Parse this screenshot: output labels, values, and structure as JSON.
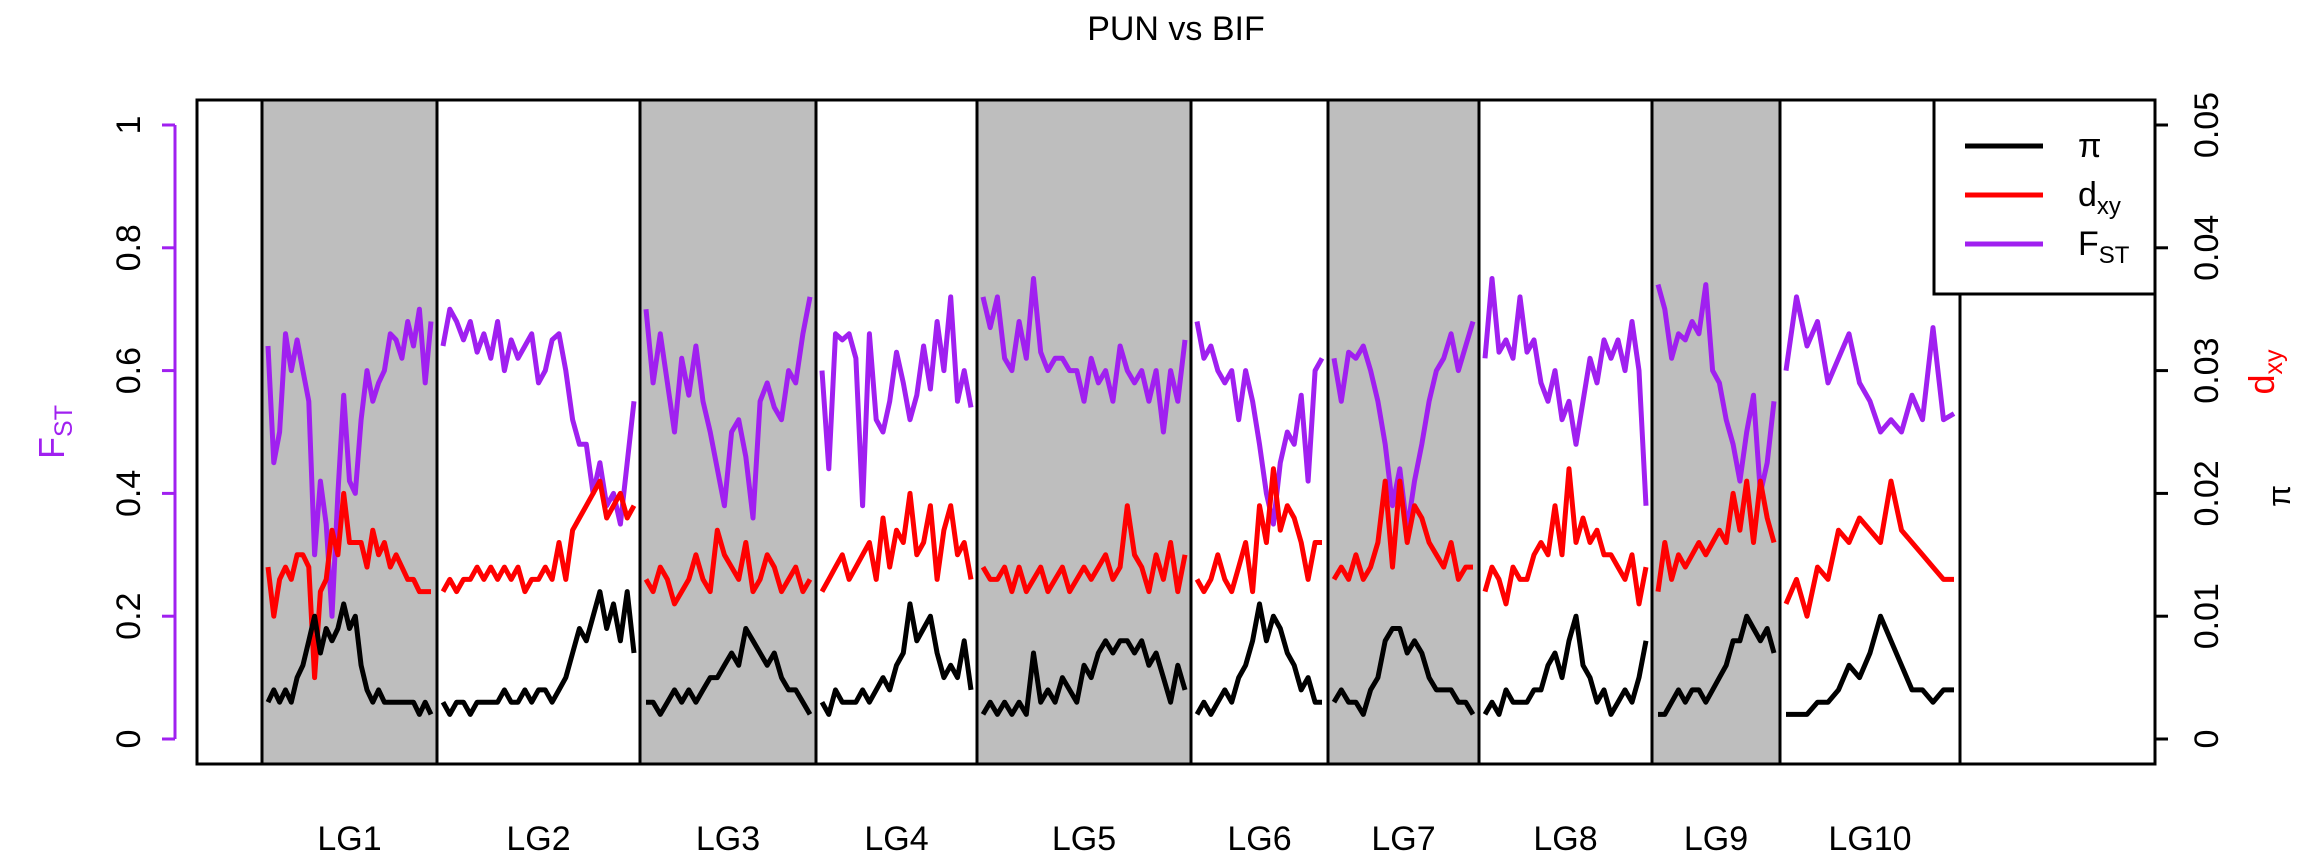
{
  "chart_data": {
    "type": "line",
    "title": "PUN vs BIF",
    "left_axis": {
      "label_main": "F",
      "label_sub": "ST",
      "color": "#A020F0",
      "ylim": [
        0,
        1
      ],
      "ticks": [
        0,
        0.2,
        0.4,
        0.6,
        0.8,
        1
      ],
      "tick_labels": [
        "0",
        "0.2",
        "0.4",
        "0.6",
        "0.8",
        "1"
      ]
    },
    "right_axis": {
      "ylim": [
        0,
        0.05
      ],
      "ticks": [
        0,
        0.01,
        0.02,
        0.03,
        0.04,
        0.05
      ],
      "tick_labels": [
        "0",
        "0.01",
        "0.02",
        "0.03",
        "0.04",
        "0.05"
      ],
      "label_dxy_main": "d",
      "label_dxy_sub": "xy",
      "label_dxy_color": "#FF0000",
      "label_pi": "π",
      "label_pi_color": "#000000"
    },
    "legend": {
      "position": "top-right",
      "entries": [
        {
          "main": "π",
          "sub": "",
          "color": "#000000"
        },
        {
          "main": "d",
          "sub": "xy",
          "color": "#FF0000"
        },
        {
          "main": "F",
          "sub": "ST",
          "color": "#A020F0"
        }
      ]
    },
    "linkage_groups": [
      {
        "name": "LG1",
        "shaded": true,
        "fst": [
          0.64,
          0.45,
          0.5,
          0.66,
          0.6,
          0.65,
          0.6,
          0.55,
          0.3,
          0.42,
          0.35,
          0.2,
          0.4,
          0.56,
          0.42,
          0.4,
          0.52,
          0.6,
          0.55,
          0.58,
          0.6,
          0.66,
          0.65,
          0.62,
          0.68,
          0.64,
          0.7,
          0.58,
          0.68
        ],
        "dxy": [
          0.014,
          0.01,
          0.013,
          0.014,
          0.013,
          0.015,
          0.015,
          0.014,
          0.005,
          0.012,
          0.013,
          0.017,
          0.015,
          0.02,
          0.016,
          0.016,
          0.016,
          0.014,
          0.017,
          0.015,
          0.016,
          0.014,
          0.015,
          0.014,
          0.013,
          0.013,
          0.012,
          0.012,
          0.012
        ],
        "pi": [
          0.003,
          0.004,
          0.003,
          0.004,
          0.003,
          0.005,
          0.006,
          0.008,
          0.01,
          0.007,
          0.009,
          0.008,
          0.009,
          0.011,
          0.009,
          0.01,
          0.006,
          0.004,
          0.003,
          0.004,
          0.003,
          0.003,
          0.003,
          0.003,
          0.003,
          0.003,
          0.002,
          0.003,
          0.002
        ]
      },
      {
        "name": "LG2",
        "shaded": false,
        "fst": [
          0.64,
          0.7,
          0.68,
          0.65,
          0.68,
          0.63,
          0.66,
          0.62,
          0.68,
          0.6,
          0.65,
          0.62,
          0.64,
          0.66,
          0.58,
          0.6,
          0.65,
          0.66,
          0.6,
          0.52,
          0.48,
          0.48,
          0.4,
          0.45,
          0.38,
          0.4,
          0.35,
          0.45,
          0.55
        ],
        "dxy": [
          0.012,
          0.013,
          0.012,
          0.013,
          0.013,
          0.014,
          0.013,
          0.014,
          0.013,
          0.014,
          0.013,
          0.014,
          0.012,
          0.013,
          0.013,
          0.014,
          0.013,
          0.016,
          0.013,
          0.017,
          0.018,
          0.019,
          0.02,
          0.021,
          0.018,
          0.019,
          0.02,
          0.018,
          0.019
        ],
        "pi": [
          0.003,
          0.002,
          0.003,
          0.003,
          0.002,
          0.003,
          0.003,
          0.003,
          0.003,
          0.004,
          0.003,
          0.003,
          0.004,
          0.003,
          0.004,
          0.004,
          0.003,
          0.004,
          0.005,
          0.007,
          0.009,
          0.008,
          0.01,
          0.012,
          0.009,
          0.011,
          0.008,
          0.012,
          0.007
        ]
      },
      {
        "name": "LG3",
        "shaded": true,
        "fst": [
          0.7,
          0.58,
          0.66,
          0.58,
          0.5,
          0.62,
          0.56,
          0.64,
          0.55,
          0.5,
          0.44,
          0.38,
          0.5,
          0.52,
          0.46,
          0.36,
          0.55,
          0.58,
          0.54,
          0.52,
          0.6,
          0.58,
          0.66,
          0.72
        ],
        "dxy": [
          0.013,
          0.012,
          0.014,
          0.013,
          0.011,
          0.012,
          0.013,
          0.015,
          0.013,
          0.012,
          0.017,
          0.015,
          0.014,
          0.013,
          0.016,
          0.012,
          0.013,
          0.015,
          0.014,
          0.012,
          0.013,
          0.014,
          0.012,
          0.013
        ],
        "pi": [
          0.003,
          0.003,
          0.002,
          0.003,
          0.004,
          0.003,
          0.004,
          0.003,
          0.004,
          0.005,
          0.005,
          0.006,
          0.007,
          0.006,
          0.009,
          0.008,
          0.007,
          0.006,
          0.007,
          0.005,
          0.004,
          0.004,
          0.003,
          0.002
        ]
      },
      {
        "name": "LG4",
        "shaded": false,
        "fst": [
          0.6,
          0.44,
          0.66,
          0.65,
          0.66,
          0.62,
          0.38,
          0.66,
          0.52,
          0.5,
          0.55,
          0.63,
          0.58,
          0.52,
          0.56,
          0.64,
          0.57,
          0.68,
          0.6,
          0.72,
          0.55,
          0.6,
          0.54
        ],
        "dxy": [
          0.012,
          0.013,
          0.014,
          0.015,
          0.013,
          0.014,
          0.015,
          0.016,
          0.013,
          0.018,
          0.014,
          0.017,
          0.016,
          0.02,
          0.015,
          0.016,
          0.019,
          0.013,
          0.017,
          0.019,
          0.015,
          0.016,
          0.013
        ],
        "pi": [
          0.003,
          0.002,
          0.004,
          0.003,
          0.003,
          0.003,
          0.004,
          0.003,
          0.004,
          0.005,
          0.004,
          0.006,
          0.007,
          0.011,
          0.008,
          0.009,
          0.01,
          0.007,
          0.005,
          0.006,
          0.005,
          0.008,
          0.004
        ]
      },
      {
        "name": "LG5",
        "shaded": true,
        "fst": [
          0.72,
          0.67,
          0.72,
          0.62,
          0.6,
          0.68,
          0.62,
          0.75,
          0.63,
          0.6,
          0.62,
          0.62,
          0.6,
          0.6,
          0.55,
          0.62,
          0.58,
          0.6,
          0.55,
          0.64,
          0.6,
          0.58,
          0.6,
          0.55,
          0.6,
          0.5,
          0.6,
          0.55,
          0.65
        ],
        "dxy": [
          0.014,
          0.013,
          0.013,
          0.014,
          0.012,
          0.014,
          0.012,
          0.013,
          0.014,
          0.012,
          0.013,
          0.014,
          0.012,
          0.013,
          0.014,
          0.013,
          0.014,
          0.015,
          0.013,
          0.014,
          0.019,
          0.015,
          0.014,
          0.012,
          0.015,
          0.013,
          0.016,
          0.012,
          0.015
        ],
        "pi": [
          0.002,
          0.003,
          0.002,
          0.003,
          0.002,
          0.003,
          0.002,
          0.007,
          0.003,
          0.004,
          0.003,
          0.005,
          0.004,
          0.003,
          0.006,
          0.005,
          0.007,
          0.008,
          0.007,
          0.008,
          0.008,
          0.007,
          0.008,
          0.006,
          0.007,
          0.005,
          0.003,
          0.006,
          0.004
        ]
      },
      {
        "name": "LG6",
        "shaded": false,
        "fst": [
          0.68,
          0.62,
          0.64,
          0.6,
          0.58,
          0.6,
          0.52,
          0.6,
          0.55,
          0.48,
          0.4,
          0.35,
          0.45,
          0.5,
          0.48,
          0.56,
          0.42,
          0.6,
          0.62
        ],
        "dxy": [
          0.013,
          0.012,
          0.013,
          0.015,
          0.013,
          0.012,
          0.014,
          0.016,
          0.012,
          0.019,
          0.016,
          0.022,
          0.017,
          0.019,
          0.018,
          0.016,
          0.013,
          0.016,
          0.016
        ],
        "pi": [
          0.002,
          0.003,
          0.002,
          0.003,
          0.004,
          0.003,
          0.005,
          0.006,
          0.008,
          0.011,
          0.008,
          0.01,
          0.009,
          0.007,
          0.006,
          0.004,
          0.005,
          0.003,
          0.003
        ]
      },
      {
        "name": "LG7",
        "shaded": true,
        "fst": [
          0.62,
          0.55,
          0.63,
          0.62,
          0.64,
          0.6,
          0.55,
          0.48,
          0.38,
          0.44,
          0.34,
          0.42,
          0.48,
          0.55,
          0.6,
          0.62,
          0.66,
          0.6,
          0.64,
          0.68
        ],
        "dxy": [
          0.013,
          0.014,
          0.013,
          0.015,
          0.013,
          0.014,
          0.016,
          0.021,
          0.014,
          0.021,
          0.016,
          0.019,
          0.018,
          0.016,
          0.015,
          0.014,
          0.016,
          0.013,
          0.014,
          0.014
        ],
        "pi": [
          0.003,
          0.004,
          0.003,
          0.003,
          0.002,
          0.004,
          0.005,
          0.008,
          0.009,
          0.009,
          0.007,
          0.008,
          0.007,
          0.005,
          0.004,
          0.004,
          0.004,
          0.003,
          0.003,
          0.002
        ]
      },
      {
        "name": "LG8",
        "shaded": false,
        "fst": [
          0.62,
          0.75,
          0.63,
          0.65,
          0.62,
          0.72,
          0.63,
          0.65,
          0.58,
          0.55,
          0.6,
          0.52,
          0.55,
          0.48,
          0.55,
          0.62,
          0.58,
          0.65,
          0.62,
          0.65,
          0.6,
          0.68,
          0.6,
          0.38
        ],
        "dxy": [
          0.012,
          0.014,
          0.013,
          0.011,
          0.014,
          0.013,
          0.013,
          0.015,
          0.016,
          0.015,
          0.019,
          0.015,
          0.022,
          0.016,
          0.018,
          0.016,
          0.017,
          0.015,
          0.015,
          0.014,
          0.013,
          0.015,
          0.011,
          0.014
        ],
        "pi": [
          0.002,
          0.003,
          0.002,
          0.004,
          0.003,
          0.003,
          0.003,
          0.004,
          0.004,
          0.006,
          0.007,
          0.005,
          0.008,
          0.01,
          0.006,
          0.005,
          0.003,
          0.004,
          0.002,
          0.003,
          0.004,
          0.003,
          0.005,
          0.008
        ]
      },
      {
        "name": "LG9",
        "shaded": true,
        "fst": [
          0.74,
          0.7,
          0.62,
          0.66,
          0.65,
          0.68,
          0.66,
          0.74,
          0.6,
          0.58,
          0.52,
          0.48,
          0.42,
          0.5,
          0.56,
          0.4,
          0.45,
          0.55
        ],
        "dxy": [
          0.012,
          0.016,
          0.013,
          0.015,
          0.014,
          0.015,
          0.016,
          0.015,
          0.016,
          0.017,
          0.016,
          0.02,
          0.017,
          0.021,
          0.016,
          0.021,
          0.018,
          0.016
        ],
        "pi": [
          0.002,
          0.002,
          0.003,
          0.004,
          0.003,
          0.004,
          0.004,
          0.003,
          0.004,
          0.005,
          0.006,
          0.008,
          0.008,
          0.01,
          0.009,
          0.008,
          0.009,
          0.007
        ]
      },
      {
        "name": "LG10",
        "shaded": false,
        "fst": [
          0.6,
          0.72,
          0.64,
          0.68,
          0.58,
          0.62,
          0.66,
          0.58,
          0.55,
          0.5,
          0.52,
          0.5,
          0.56,
          0.52,
          0.67,
          0.52,
          0.53
        ],
        "dxy": [
          0.011,
          0.013,
          0.01,
          0.014,
          0.013,
          0.017,
          0.016,
          0.018,
          0.017,
          0.016,
          0.021,
          0.017,
          0.016,
          0.015,
          0.014,
          0.013,
          0.013
        ],
        "pi": [
          0.002,
          0.002,
          0.002,
          0.003,
          0.003,
          0.004,
          0.006,
          0.005,
          0.007,
          0.01,
          0.008,
          0.006,
          0.004,
          0.004,
          0.003,
          0.004,
          0.004
        ]
      }
    ]
  }
}
